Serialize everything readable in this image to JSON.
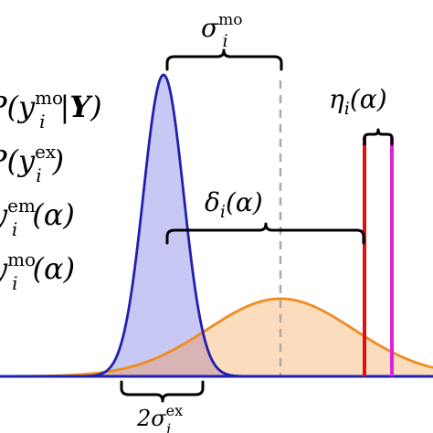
{
  "diagram": {
    "legend": [
      {
        "prefix": "P(y",
        "sub": "i",
        "sup": "mo",
        "suffix": "|",
        "bold": "Y",
        "tail": ")"
      },
      {
        "prefix": "P(y",
        "sub": "i",
        "sup": "ex",
        "suffix": ")",
        "bold": "",
        "tail": ""
      },
      {
        "prefix": "y",
        "sub": "i",
        "sup": "em",
        "suffix": "(α)",
        "bold": "",
        "tail": ""
      },
      {
        "prefix": "y",
        "sub": "i",
        "sup": "mo",
        "suffix": "(α)",
        "bold": "",
        "tail": ""
      }
    ],
    "labels": {
      "sigma_mo": {
        "base": "σ",
        "sub": "i",
        "sup": "mo"
      },
      "delta": {
        "base": "δ",
        "sub": "i",
        "tail": "(α)"
      },
      "eta": {
        "base": "η",
        "sub": "i",
        "tail": "(α)"
      },
      "sigma_ex": {
        "base": "2σ",
        "sub": "i",
        "sup": "ex"
      }
    },
    "colors": {
      "blue_curve": "#2020b0",
      "blue_fill": "#c8c8f5",
      "orange_curve": "#f08c1e",
      "orange_fill": "#fbdcbc",
      "overlap_fill": "#d8b4b4",
      "red_line": "#dd1111",
      "magenta_line": "#dd22dd",
      "dashed_line": "#aaaaaa",
      "baseline": "#2020b0"
    }
  }
}
